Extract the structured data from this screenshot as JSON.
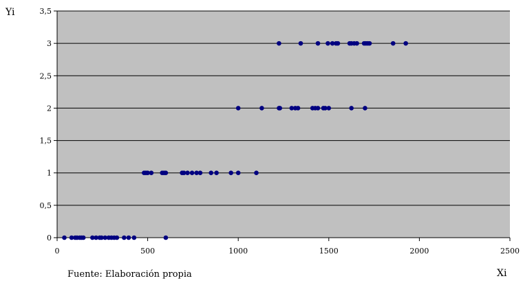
{
  "chart_data": {
    "type": "scatter",
    "title": "",
    "xlabel": "Xi",
    "ylabel": "Yi",
    "source_note": "Fuente: Elaboración propia",
    "xlim": [
      0,
      2500
    ],
    "ylim": [
      0,
      3.5
    ],
    "x_ticks": [
      "0",
      "500",
      "1000",
      "1500",
      "2000",
      "2500"
    ],
    "y_ticks": [
      "0",
      "0,5",
      "1",
      "1,5",
      "2",
      "2,5",
      "3",
      "3,5"
    ],
    "grid": true,
    "plot_background": "#c0c0c0",
    "gridline_color": "#000000",
    "marker_color": "#000080",
    "series": [
      {
        "x": [
          40,
          80,
          100,
          110,
          125,
          135,
          145,
          195,
          215,
          235,
          245,
          265,
          285,
          300,
          315,
          330,
          370,
          395,
          425,
          600,
          480,
          490,
          500,
          520,
          580,
          590,
          600,
          690,
          700,
          720,
          745,
          770,
          790,
          850,
          880,
          960,
          1000,
          1100,
          1000,
          1130,
          1225,
          1230,
          1295,
          1315,
          1330,
          1410,
          1425,
          1440,
          1470,
          1480,
          1500,
          1625,
          1700,
          1225,
          1345,
          1440,
          1495,
          1520,
          1540,
          1550,
          1615,
          1625,
          1640,
          1655,
          1695,
          1705,
          1715,
          1725,
          1855,
          1925
        ],
        "y": [
          0,
          0,
          0,
          0,
          0,
          0,
          0,
          0,
          0,
          0,
          0,
          0,
          0,
          0,
          0,
          0,
          0,
          0,
          0,
          0,
          1,
          1,
          1,
          1,
          1,
          1,
          1,
          1,
          1,
          1,
          1,
          1,
          1,
          1,
          1,
          1,
          1,
          1,
          2,
          2,
          2,
          2,
          2,
          2,
          2,
          2,
          2,
          2,
          2,
          2,
          2,
          2,
          2,
          3,
          3,
          3,
          3,
          3,
          3,
          3,
          3,
          3,
          3,
          3,
          3,
          3,
          3,
          3,
          3,
          3
        ]
      }
    ]
  }
}
